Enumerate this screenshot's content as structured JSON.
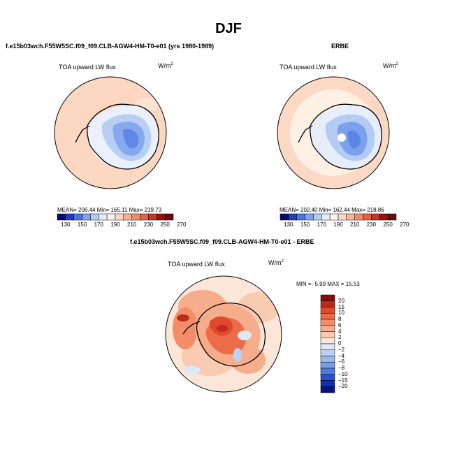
{
  "figure": {
    "title": "DJF",
    "variable": "TOA upward LW flux",
    "units_base": "W/m",
    "units_exp": "2"
  },
  "panels": {
    "model": {
      "title": "f.e15b03wch.F55W5SC.f09_f09.CLB-AGW4-HM-T0-e01 (yrs 1980-1989)",
      "stats": "MEAN= 206.44   Min= 165.11   Max= 219.73"
    },
    "obs": {
      "title": "ERBE",
      "stats": "MEAN= 202.40   Min= 162.44   Max= 218.86"
    },
    "diff": {
      "title": "f.e15b03wch.F55W5SC.f09_f09.CLB-AGW4-HM-T0-e01 - ERBE",
      "stats": "MIN =  -5.99 MAX =  15.53"
    }
  },
  "colorbars": {
    "abs_levels": [
      "130",
      "150",
      "170",
      "190",
      "210",
      "230",
      "250",
      "270"
    ],
    "abs_colors": [
      "#08086e",
      "#1f3fbf",
      "#4a74e0",
      "#7fa3ef",
      "#b4ccf5",
      "#e3ebfb",
      "#fff4ea",
      "#fcd9c4",
      "#f7b394",
      "#f18c66",
      "#e4603e",
      "#c8371f",
      "#961410",
      "#6e0808"
    ],
    "diff_levels": [
      "20",
      "15",
      "10",
      "8",
      "6",
      "4",
      "2",
      "0",
      "−2",
      "−4",
      "−6",
      "−8",
      "−10",
      "−15",
      "−20"
    ],
    "diff_colors": [
      "#8a0d0d",
      "#bf2a18",
      "#dd4a2c",
      "#eb6c47",
      "#f28d68",
      "#f6ad8c",
      "#f9cbb1",
      "#fbe6d8",
      "#dde8f8",
      "#bcd0f2",
      "#9bb8ec",
      "#799ee6",
      "#4f79dd",
      "#2550cf",
      "#0a2fb8",
      "#05137f"
    ]
  },
  "chart_data": [
    {
      "type": "map",
      "projection": "south polar stereographic",
      "title": "f.e15b03wch.F55W5SC.f09_f09.CLB-AGW4-HM-T0-e01 (yrs 1980-1989)",
      "field": "TOA upward LW flux",
      "units": "W/m2",
      "mean": 206.44,
      "min": 165.11,
      "max": 219.73,
      "contour_levels": [
        130,
        150,
        170,
        190,
        210,
        230,
        250,
        270
      ]
    },
    {
      "type": "map",
      "projection": "south polar stereographic",
      "title": "ERBE",
      "field": "TOA upward LW flux",
      "units": "W/m2",
      "mean": 202.4,
      "min": 162.44,
      "max": 218.86,
      "contour_levels": [
        130,
        150,
        170,
        190,
        210,
        230,
        250,
        270
      ]
    },
    {
      "type": "map",
      "projection": "south polar stereographic",
      "title": "f.e15b03wch.F55W5SC.f09_f09.CLB-AGW4-HM-T0-e01 - ERBE",
      "field": "TOA upward LW flux",
      "units": "W/m2",
      "min": -5.99,
      "max": 15.53,
      "contour_levels": [
        -20,
        -15,
        -10,
        -8,
        -6,
        -4,
        -2,
        0,
        2,
        4,
        6,
        8,
        10,
        15,
        20
      ]
    }
  ]
}
